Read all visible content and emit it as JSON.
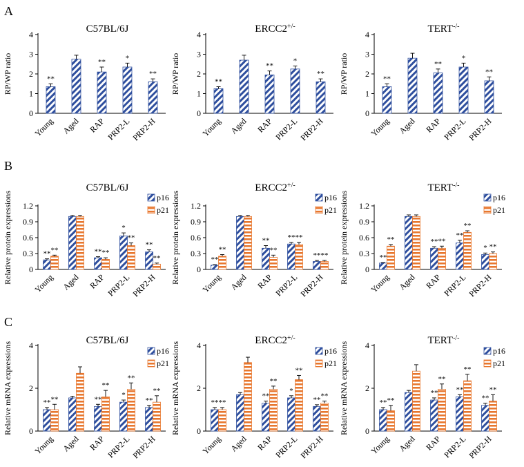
{
  "colors": {
    "blue": "#2f4f9e",
    "orange": "#e8772e",
    "axis": "#000000"
  },
  "panel_labels": [
    "A",
    "B",
    "C"
  ],
  "row_ylabels": [
    "RP/WP ratio",
    "Relative protein expressions",
    "Relative mRNA expressions"
  ],
  "chart_data": [
    {
      "type": "bar",
      "row": 0,
      "col": 0,
      "title": "C57BL/6J",
      "ylabel": "RP/WP ratio",
      "ylim": [
        0,
        4
      ],
      "yticks": [
        "0",
        "1",
        "2",
        "3",
        "4"
      ],
      "categories": [
        "Young",
        "Aged",
        "RAP",
        "PRP2-L",
        "PRP2-H"
      ],
      "series": [
        {
          "name": "",
          "values": [
            1.35,
            2.75,
            2.1,
            2.35,
            1.6
          ],
          "errors": [
            0.15,
            0.2,
            0.25,
            0.2,
            0.15
          ],
          "sig": [
            "**",
            "",
            "**",
            "*",
            "**"
          ]
        }
      ]
    },
    {
      "type": "bar",
      "row": 0,
      "col": 1,
      "title": "ERCC2",
      "title_sup": "+/-",
      "ylabel": "RP/WP ratio",
      "ylim": [
        0,
        4
      ],
      "yticks": [
        "0",
        "1",
        "2",
        "3",
        "4"
      ],
      "categories": [
        "Young",
        "Aged",
        "RAP",
        "PRP2-L",
        "PRP2-H"
      ],
      "series": [
        {
          "name": "",
          "values": [
            1.25,
            2.7,
            1.95,
            2.25,
            1.6
          ],
          "errors": [
            0.1,
            0.25,
            0.2,
            0.15,
            0.15
          ],
          "sig": [
            "**",
            "",
            "**",
            "*",
            "**"
          ]
        }
      ]
    },
    {
      "type": "bar",
      "row": 0,
      "col": 2,
      "title": "TERT",
      "title_sup": "-/-",
      "ylabel": "RP/WP ratio",
      "ylim": [
        0,
        4
      ],
      "yticks": [
        "0",
        "1",
        "2",
        "3",
        "4"
      ],
      "categories": [
        "Young",
        "Aged",
        "RAP",
        "PRP2-L",
        "PRP2-H"
      ],
      "series": [
        {
          "name": "",
          "values": [
            1.35,
            2.8,
            2.05,
            2.35,
            1.65
          ],
          "errors": [
            0.15,
            0.25,
            0.2,
            0.2,
            0.2
          ],
          "sig": [
            "**",
            "",
            "**",
            "*",
            "**"
          ]
        }
      ]
    },
    {
      "type": "bar",
      "row": 1,
      "col": 0,
      "title": "C57BL/6J",
      "ylabel": "Relative protein expressions",
      "ylim": [
        0,
        1.2
      ],
      "yticks": [
        "0",
        "0.3",
        "0.6",
        "0.9",
        "1.2"
      ],
      "categories": [
        "Young",
        "Aged",
        "RAP",
        "PRP2-L",
        "PRP2-H"
      ],
      "legend": [
        "p16",
        "p21"
      ],
      "series": [
        {
          "name": "p16",
          "values": [
            0.18,
            1.0,
            0.22,
            0.63,
            0.33
          ],
          "errors": [
            0.02,
            0.02,
            0.02,
            0.06,
            0.04
          ],
          "sig": [
            "**",
            "",
            "**",
            "*",
            "**"
          ]
        },
        {
          "name": "p21",
          "values": [
            0.25,
            1.0,
            0.19,
            0.45,
            0.1
          ],
          "errors": [
            0.02,
            0.02,
            0.03,
            0.05,
            0.02
          ],
          "sig": [
            "**",
            "",
            "**",
            "**",
            "**"
          ]
        }
      ]
    },
    {
      "type": "bar",
      "row": 1,
      "col": 1,
      "title": "ERCC2",
      "title_sup": "+/-",
      "ylabel": "Relative protein expressions",
      "ylim": [
        0,
        1.2
      ],
      "yticks": [
        "0",
        "0.3",
        "0.6",
        "0.9",
        "1.2"
      ],
      "categories": [
        "Young",
        "Aged",
        "RAP",
        "PRP2-L",
        "PRP2-H"
      ],
      "legend": [
        "p16",
        "p21"
      ],
      "series": [
        {
          "name": "p16",
          "values": [
            0.08,
            1.0,
            0.4,
            0.48,
            0.15
          ],
          "errors": [
            0.01,
            0.02,
            0.05,
            0.03,
            0.02
          ],
          "sig": [
            "**",
            "",
            "**",
            "**",
            "**"
          ]
        },
        {
          "name": "p21",
          "values": [
            0.25,
            1.0,
            0.23,
            0.47,
            0.15
          ],
          "errors": [
            0.03,
            0.02,
            0.04,
            0.04,
            0.02
          ],
          "sig": [
            "**",
            "",
            "**",
            "**",
            "**"
          ]
        }
      ]
    },
    {
      "type": "bar",
      "row": 1,
      "col": 2,
      "title": "TERT",
      "title_sup": "-/-",
      "ylabel": "Relative protein expressions",
      "ylim": [
        0,
        1.2
      ],
      "yticks": [
        "0",
        "0.3",
        "0.6",
        "0.9",
        "1.2"
      ],
      "categories": [
        "Young",
        "Aged",
        "RAP",
        "PRP2-L",
        "PRP2-H"
      ],
      "legend": [
        "p16",
        "p21"
      ],
      "series": [
        {
          "name": "p16",
          "values": [
            0.12,
            1.0,
            0.4,
            0.5,
            0.28
          ],
          "errors": [
            0.01,
            0.03,
            0.03,
            0.05,
            0.03
          ],
          "sig": [
            "**",
            "",
            "**",
            "**",
            "*"
          ]
        },
        {
          "name": "p21",
          "values": [
            0.44,
            1.0,
            0.4,
            0.7,
            0.3
          ],
          "errors": [
            0.03,
            0.03,
            0.04,
            0.03,
            0.03
          ],
          "sig": [
            "**",
            "",
            "**",
            "**",
            "**"
          ]
        }
      ]
    },
    {
      "type": "bar",
      "row": 2,
      "col": 0,
      "title": "C57BL/6J",
      "ylabel": "Relative mRNA expressions",
      "ylim": [
        0,
        4
      ],
      "yticks": [
        "0",
        "2",
        "4"
      ],
      "categories": [
        "Young",
        "Aged",
        "RAP",
        "PRP2-L",
        "PRP2-H"
      ],
      "legend": [
        "p16",
        "p21"
      ],
      "series": [
        {
          "name": "p16",
          "values": [
            1.0,
            1.55,
            1.15,
            1.35,
            1.1
          ],
          "errors": [
            0.1,
            0.08,
            0.1,
            0.1,
            0.1
          ],
          "sig": [
            "**",
            "",
            "**",
            "*",
            "**"
          ]
        },
        {
          "name": "p21",
          "values": [
            1.0,
            2.7,
            1.6,
            1.95,
            1.35
          ],
          "errors": [
            0.25,
            0.3,
            0.3,
            0.3,
            0.3
          ],
          "sig": [
            "**",
            "",
            "**",
            "**",
            "**"
          ]
        }
      ]
    },
    {
      "type": "bar",
      "row": 2,
      "col": 1,
      "title": "ERCC2",
      "title_sup": "+/-",
      "ylabel": "Relative mRNA expressions",
      "ylim": [
        0,
        4
      ],
      "yticks": [
        "0",
        "2",
        "4"
      ],
      "categories": [
        "Young",
        "Aged",
        "RAP",
        "PRP2-L",
        "PRP2-H"
      ],
      "legend": [
        "p16",
        "p21"
      ],
      "series": [
        {
          "name": "p16",
          "values": [
            1.0,
            1.7,
            1.3,
            1.55,
            1.15
          ],
          "errors": [
            0.1,
            0.1,
            0.1,
            0.1,
            0.08
          ],
          "sig": [
            "**",
            "",
            "**",
            "*",
            "**"
          ]
        },
        {
          "name": "p21",
          "values": [
            1.0,
            3.2,
            1.95,
            2.4,
            1.3
          ],
          "errors": [
            0.1,
            0.25,
            0.15,
            0.2,
            0.1
          ],
          "sig": [
            "**",
            "",
            "**",
            "**",
            "**"
          ]
        }
      ]
    },
    {
      "type": "bar",
      "row": 2,
      "col": 2,
      "title": "TERT",
      "title_sup": "-/-",
      "ylabel": "Relative mRNA expressions",
      "ylim": [
        0,
        4
      ],
      "yticks": [
        "0",
        "2",
        "4"
      ],
      "categories": [
        "Young",
        "Aged",
        "RAP",
        "PRP2-L",
        "PRP2-H"
      ],
      "legend": [
        "p16",
        "p21"
      ],
      "series": [
        {
          "name": "p16",
          "values": [
            1.0,
            1.8,
            1.45,
            1.6,
            1.2
          ],
          "errors": [
            0.1,
            0.1,
            0.1,
            0.1,
            0.1
          ],
          "sig": [
            "**",
            "",
            "**",
            "**",
            "**"
          ]
        },
        {
          "name": "p21",
          "values": [
            0.95,
            2.8,
            1.95,
            2.35,
            1.4
          ],
          "errors": [
            0.25,
            0.3,
            0.25,
            0.3,
            0.3
          ],
          "sig": [
            "**",
            "",
            "**",
            "**",
            "**"
          ]
        }
      ]
    }
  ]
}
